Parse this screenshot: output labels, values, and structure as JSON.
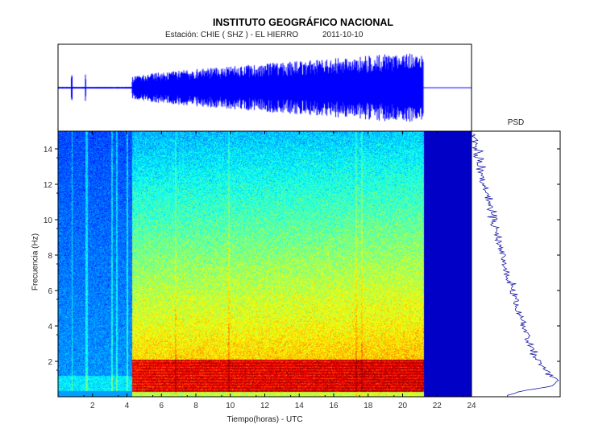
{
  "header": {
    "title": "INSTITUTO GEOGRÁFICO NACIONAL",
    "station": "Estación:  CHIE ( SHZ ) - EL HIERRO",
    "date": "2011-10-10"
  },
  "chart_data": {
    "type": "heatmap",
    "title": "INSTITUTO GEOGRÁFICO NACIONAL",
    "xlabel": "Tiempo(horas) - UTC",
    "ylabel": "Frecuencia  (Hz)",
    "xlim": [
      0,
      24
    ],
    "ylim": [
      0,
      15
    ],
    "xticks": [
      "2",
      "4",
      "6",
      "8",
      "10",
      "12",
      "14",
      "16",
      "18",
      "20",
      "22",
      "24"
    ],
    "yticks": [
      "2",
      "4",
      "6",
      "8",
      "10",
      "12",
      "14"
    ],
    "colormap": "jet",
    "tremor_onset_hours": 4.3,
    "data_end_hours": 21.2,
    "dominant_band_hz": [
      0.5,
      2.0
    ],
    "seismogram_envelope": {
      "hours": [
        0,
        4.3,
        6,
        8,
        10,
        12,
        14,
        16,
        18,
        20,
        21.2
      ],
      "amplitude": [
        0.02,
        0.25,
        0.35,
        0.42,
        0.48,
        0.55,
        0.6,
        0.66,
        0.72,
        0.8,
        0.85
      ]
    },
    "psd": {
      "label": "PSD",
      "freq_hz": [
        0.05,
        0.3,
        0.6,
        0.9,
        1.3,
        2,
        3,
        4,
        5,
        6,
        7,
        8,
        9,
        10,
        11,
        12,
        13,
        14,
        14.8
      ],
      "relative_power": [
        0.4,
        0.55,
        0.92,
        1.0,
        0.9,
        0.78,
        0.66,
        0.6,
        0.53,
        0.48,
        0.4,
        0.35,
        0.3,
        0.25,
        0.2,
        0.15,
        0.1,
        0.06,
        0.02
      ]
    }
  }
}
